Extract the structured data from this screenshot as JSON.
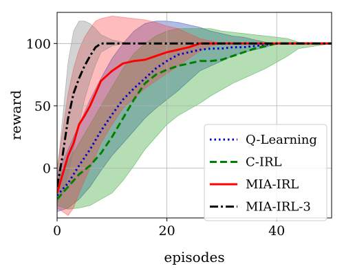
{
  "chart_data": {
    "type": "line",
    "xlabel": "episodes",
    "ylabel": "reward",
    "xlim": [
      0,
      50
    ],
    "ylim": [
      -40,
      125
    ],
    "xticks": [
      0,
      20,
      40
    ],
    "yticks": [
      0,
      50,
      100
    ],
    "grid": true,
    "legend_position": "lower-right",
    "series": [
      {
        "name": "Q-Learning",
        "color": "#0000cc",
        "dash": "dotted",
        "fill": "#1f3fb4",
        "x": [
          0,
          2,
          4,
          6,
          8,
          10,
          12,
          14,
          16,
          18,
          20,
          22,
          24,
          26,
          28,
          30,
          32,
          34,
          36,
          38,
          40,
          45,
          50
        ],
        "y": [
          -22,
          -12,
          2,
          15,
          30,
          43,
          55,
          64,
          72,
          80,
          86,
          91,
          93,
          95,
          96,
          96,
          97,
          97,
          98,
          99,
          100,
          100,
          100
        ],
        "upper": [
          -5,
          15,
          35,
          55,
          72,
          88,
          100,
          110,
          116,
          118,
          118,
          117,
          115,
          113,
          110,
          108,
          106,
          105,
          103,
          101,
          100,
          100,
          100
        ],
        "lower": [
          -35,
          -32,
          -25,
          -15,
          -2,
          10,
          20,
          30,
          40,
          48,
          55,
          62,
          70,
          78,
          82,
          86,
          90,
          93,
          95,
          97,
          100,
          100,
          100
        ]
      },
      {
        "name": "C-IRL",
        "color": "#008000",
        "dash": "dashed",
        "fill": "#2ca02c",
        "x": [
          0,
          2,
          4,
          6,
          8,
          10,
          12,
          14,
          16,
          18,
          20,
          22,
          24,
          26,
          28,
          30,
          32,
          34,
          36,
          38,
          40,
          42,
          44,
          50
        ],
        "y": [
          -25,
          -15,
          -5,
          2,
          12,
          25,
          40,
          55,
          68,
          75,
          79,
          82,
          84,
          86,
          86,
          87,
          90,
          93,
          96,
          98,
          100,
          100,
          100,
          100
        ],
        "upper": [
          -10,
          5,
          20,
          35,
          50,
          65,
          80,
          92,
          100,
          106,
          110,
          112,
          112,
          112,
          112,
          110,
          109,
          108,
          107,
          106,
          105,
          104,
          101,
          100
        ],
        "lower": [
          -30,
          -33,
          -32,
          -30,
          -25,
          -20,
          -10,
          2,
          15,
          25,
          35,
          42,
          47,
          52,
          58,
          63,
          68,
          72,
          76,
          80,
          85,
          90,
          96,
          100
        ]
      },
      {
        "name": "MIA-IRL",
        "color": "#ff0000",
        "dash": "solid",
        "fill": "#ff4040",
        "x": [
          0,
          1,
          2,
          3,
          4,
          5,
          6,
          7,
          8,
          10,
          12,
          14,
          16,
          18,
          20,
          22,
          24,
          26,
          28,
          30,
          50
        ],
        "y": [
          -20,
          -5,
          10,
          20,
          35,
          42,
          50,
          60,
          70,
          78,
          84,
          86,
          87,
          90,
          93,
          95,
          97,
          100,
          100,
          100,
          100
        ],
        "upper": [
          0,
          30,
          60,
          80,
          95,
          105,
          112,
          118,
          120,
          122,
          121,
          120,
          119,
          117,
          114,
          112,
          108,
          104,
          102,
          100,
          100
        ],
        "lower": [
          -32,
          -35,
          -38,
          -32,
          -20,
          -10,
          0,
          10,
          20,
          35,
          48,
          56,
          64,
          70,
          76,
          82,
          88,
          94,
          98,
          100,
          100
        ]
      },
      {
        "name": "MIA-IRL-3",
        "color": "#000000",
        "dash": "dashdot",
        "fill": "#808080",
        "x": [
          0,
          1,
          2,
          3,
          4,
          5,
          6,
          7,
          8,
          10,
          12,
          14,
          50
        ],
        "y": [
          -15,
          10,
          40,
          60,
          72,
          82,
          90,
          97,
          100,
          100,
          100,
          100,
          100
        ],
        "upper": [
          -5,
          40,
          85,
          110,
          118,
          118,
          116,
          112,
          107,
          103,
          101,
          100,
          100
        ],
        "lower": [
          -28,
          -20,
          -5,
          15,
          35,
          55,
          70,
          83,
          93,
          98,
          100,
          100,
          100
        ]
      }
    ]
  }
}
